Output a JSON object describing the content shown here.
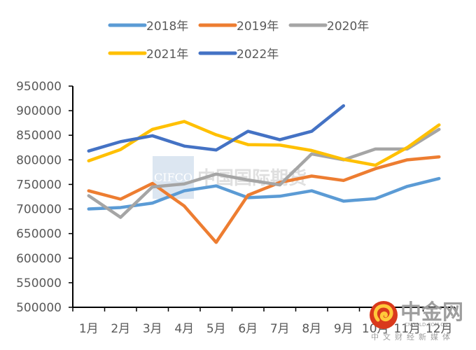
{
  "chart_data": {
    "type": "line",
    "title": "",
    "xlabel": "",
    "ylabel": "",
    "categories": [
      "1月",
      "2月",
      "3月",
      "4月",
      "5月",
      "6月",
      "7月",
      "8月",
      "9月",
      "10月",
      "11月",
      "12月"
    ],
    "ylim": [
      500000,
      950000
    ],
    "yticks": [
      500000,
      550000,
      600000,
      650000,
      700000,
      750000,
      800000,
      850000,
      900000,
      950000
    ],
    "ytick_labels": [
      "500000",
      "550000",
      "600000",
      "650000",
      "700000",
      "750000",
      "800000",
      "850000",
      "900000",
      "950000"
    ],
    "grid": false,
    "legend_position": "top",
    "series": [
      {
        "name": "2018年",
        "color": "#5B9BD5",
        "values": [
          700000,
          703000,
          712000,
          737000,
          747000,
          723000,
          726000,
          737000,
          716000,
          721000,
          746000,
          762000
        ]
      },
      {
        "name": "2019年",
        "color": "#ED7D31",
        "values": [
          737000,
          720000,
          752000,
          706000,
          632000,
          728000,
          754000,
          767000,
          758000,
          782000,
          800000,
          806000
        ]
      },
      {
        "name": "2020年",
        "color": "#A5A5A5",
        "values": [
          727000,
          683000,
          745000,
          751000,
          771000,
          759000,
          749000,
          812000,
          800000,
          822000,
          822000,
          862000
        ]
      },
      {
        "name": "2021年",
        "color": "#FFC000",
        "values": [
          798000,
          821000,
          862000,
          878000,
          851000,
          831000,
          830000,
          819000,
          801000,
          789000,
          825000,
          871000
        ]
      },
      {
        "name": "2022年",
        "color": "#4472C4",
        "values": [
          818000,
          837000,
          849000,
          828000,
          820000,
          858000,
          841000,
          858000,
          910000,
          null,
          null,
          null
        ]
      }
    ]
  },
  "watermark": {
    "brand_en": "CIFCO",
    "brand_cn": "中国国际期货"
  },
  "logo": {
    "name": "中金网",
    "url_text": "CNGOLD.COM.CN",
    "tagline": "中文财经新媒体"
  }
}
